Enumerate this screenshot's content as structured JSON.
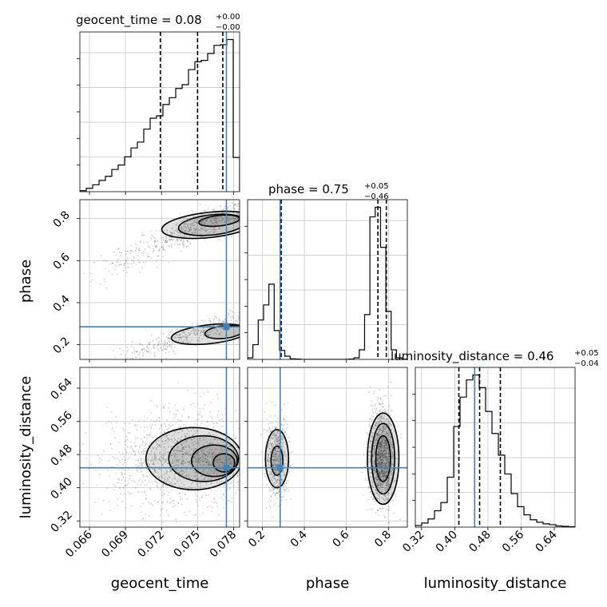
{
  "chart_data": {
    "type": "corner",
    "parameters": [
      "geocent_time",
      "phase",
      "luminosity_distance"
    ],
    "titles": {
      "geocent_time": {
        "name": "geocent_time",
        "median": "0.08",
        "plus": "+0.00",
        "minus": "−0.00"
      },
      "phase": {
        "name": "phase",
        "median": "0.75",
        "plus": "+0.05",
        "minus": "−0.46"
      },
      "luminosity_distance": {
        "name": "luminosity_distance",
        "median": "0.46",
        "plus": "+0.05",
        "minus": "−0.04"
      }
    },
    "axes": {
      "geocent_time": {
        "label": "geocent_time",
        "range": [
          0.0652,
          0.0785
        ],
        "ticks": [
          0.066,
          0.069,
          0.072,
          0.075,
          0.078
        ],
        "tick_labels": [
          "0.066",
          "0.069",
          "0.072",
          "0.075",
          "0.078"
        ]
      },
      "phase": {
        "label": "phase",
        "range": [
          0.13,
          0.89
        ],
        "ticks": [
          0.2,
          0.4,
          0.6,
          0.8
        ],
        "tick_labels": [
          "0.2",
          "0.4",
          "0.6",
          "0.8"
        ]
      },
      "luminosity_distance": {
        "label": "luminosity_distance",
        "range": [
          0.305,
          0.69
        ],
        "ticks": [
          0.32,
          0.4,
          0.48,
          0.56,
          0.64
        ],
        "tick_labels": [
          "0.32",
          "0.40",
          "0.48",
          "0.56",
          "0.64"
        ]
      }
    },
    "injection": {
      "geocent_time": 0.0774,
      "phase": 0.285,
      "luminosity_distance": 0.448
    },
    "quantile_lines": {
      "geocent_time": [
        0.0719,
        0.075,
        0.0771
      ],
      "phase": [
        0.29,
        0.75,
        0.79
      ],
      "luminosity_distance": [
        0.41,
        0.46,
        0.51
      ]
    },
    "histograms": {
      "geocent_time": {
        "x0": 0.0652,
        "dx": 0.000532,
        "counts": [
          0.3,
          1.0,
          2.0,
          3.3,
          4.5,
          6.5,
          7.8,
          10.2,
          12.8,
          14.5,
          18.3,
          21.5,
          22.2,
          25.5,
          27.5,
          30.2,
          31.3,
          35.7,
          38.0,
          38.4,
          40.4,
          42.8,
          43.0,
          44.5,
          10.0
        ]
      },
      "phase": {
        "x0": 0.13,
        "dx": 0.0253,
        "counts": [
          0.5,
          4.6,
          12.3,
          17.0,
          23.5,
          9.0,
          2.8,
          1.0,
          0.2,
          0.1,
          0.0,
          0.0,
          0.0,
          0.0,
          0.0,
          0.0,
          0.0,
          0.0,
          0.0,
          0.1,
          0.5,
          3.0,
          14.0,
          44.5,
          47.5,
          35.0,
          15.0,
          3.0,
          0.5,
          0.1
        ]
      },
      "luminosity_distance": {
        "x0": 0.305,
        "dx": 0.0154,
        "counts": [
          0.4,
          1.0,
          2.0,
          4.0,
          6.0,
          12.2,
          24.6,
          31.8,
          36.0,
          37.2,
          34.1,
          28.3,
          22.9,
          17.6,
          13.0,
          8.2,
          5.0,
          3.0,
          1.8,
          1.2,
          0.8,
          0.6,
          0.3,
          0.2,
          0.1
        ]
      }
    },
    "sample_clusters": {
      "geocent_time_vs_phase": [
        {
          "x_center": 0.075,
          "x_spread": 0.004,
          "y_center": 0.76,
          "y_spread": 0.035,
          "slope": 25,
          "n": 700
        },
        {
          "x_center": 0.075,
          "x_spread": 0.004,
          "y_center": 0.26,
          "y_spread": 0.025,
          "slope": 20,
          "n": 500
        }
      ],
      "geocent_time_vs_luminosity_distance": [
        {
          "x_center": 0.074,
          "x_spread": 0.0035,
          "y_center": 0.47,
          "y_spread": 0.055,
          "slope": 0,
          "n": 1400
        }
      ],
      "phase_vs_luminosity_distance": [
        {
          "x_center": 0.27,
          "x_spread": 0.025,
          "y_center": 0.47,
          "y_spread": 0.05,
          "slope": 0,
          "n": 600
        },
        {
          "x_center": 0.765,
          "x_spread": 0.03,
          "y_center": 0.47,
          "y_spread": 0.06,
          "slope": 0,
          "n": 1300
        }
      ]
    },
    "contours": {
      "geocent_time_vs_phase": [
        {
          "cx": 0.0762,
          "cy": 0.77,
          "rx": 0.0028,
          "ry": 0.048,
          "rot": -6
        },
        {
          "cx": 0.076,
          "cy": 0.77,
          "rx": 0.004,
          "ry": 0.06,
          "rot": -6
        },
        {
          "cx": 0.0768,
          "cy": 0.79,
          "rx": 0.0017,
          "ry": 0.025,
          "rot": -6
        },
        {
          "cx": 0.0772,
          "cy": 0.26,
          "rx": 0.0016,
          "ry": 0.03,
          "rot": -6
        },
        {
          "cx": 0.076,
          "cy": 0.25,
          "rx": 0.0032,
          "ry": 0.045,
          "rot": -6
        }
      ],
      "geocent_time_vs_luminosity_distance": [
        {
          "cx": 0.0747,
          "cy": 0.47,
          "rx": 0.004,
          "ry": 0.075,
          "rot": 0
        },
        {
          "cx": 0.0755,
          "cy": 0.47,
          "rx": 0.0029,
          "ry": 0.055,
          "rot": 0
        },
        {
          "cx": 0.0764,
          "cy": 0.465,
          "rx": 0.0019,
          "ry": 0.038,
          "rot": 0
        },
        {
          "cx": 0.0772,
          "cy": 0.46,
          "rx": 0.0009,
          "ry": 0.022,
          "rot": 0
        }
      ],
      "phase_vs_luminosity_distance": [
        {
          "cx": 0.27,
          "cy": 0.47,
          "rx": 0.055,
          "ry": 0.07,
          "rot": 0
        },
        {
          "cx": 0.27,
          "cy": 0.465,
          "rx": 0.028,
          "ry": 0.035,
          "rot": 0
        },
        {
          "cx": 0.775,
          "cy": 0.47,
          "rx": 0.075,
          "ry": 0.11,
          "rot": 0
        },
        {
          "cx": 0.775,
          "cy": 0.47,
          "rx": 0.055,
          "ry": 0.085,
          "rot": 0
        },
        {
          "cx": 0.775,
          "cy": 0.47,
          "rx": 0.035,
          "ry": 0.055,
          "rot": 0
        }
      ]
    },
    "colors": {
      "injection": "#4682b4",
      "hist": "#000000",
      "samples": "#555555",
      "grid": "#c8c8c8"
    }
  }
}
